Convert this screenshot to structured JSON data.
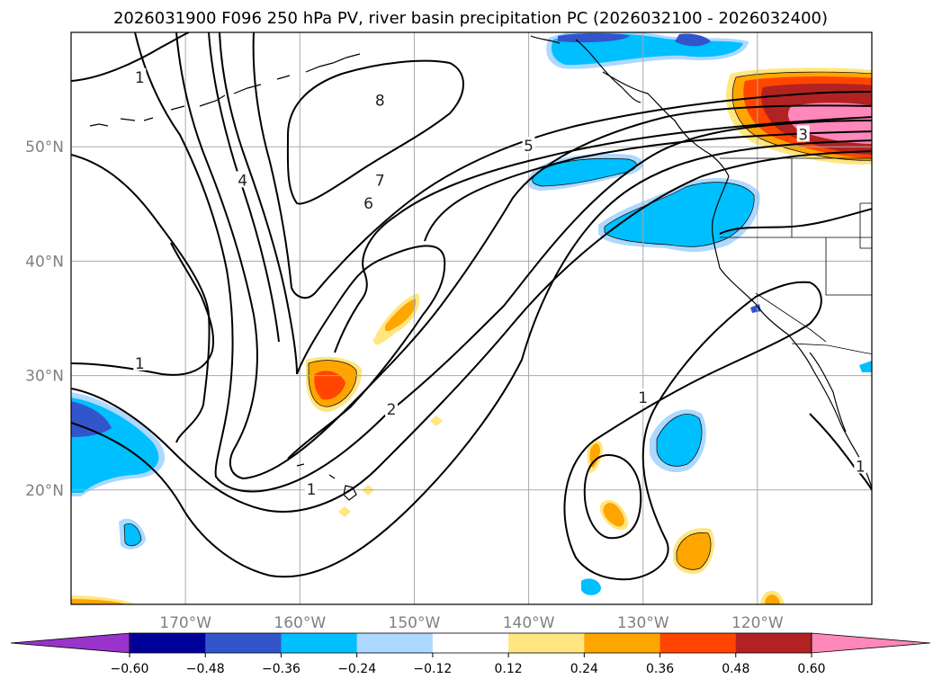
{
  "chart_data": {
    "type": "map",
    "title": "2026031900 F096 250 hPa PV, river basin precipitation PC (2026032100 - 2026032400)",
    "x_ticks": [
      "170°W",
      "160°W",
      "150°W",
      "140°W",
      "130°W",
      "120°W"
    ],
    "y_ticks": [
      "50°N",
      "40°N",
      "30°N",
      "20°N"
    ],
    "lon_range": [
      -180,
      -110
    ],
    "lat_range": [
      10,
      60
    ],
    "grid": true,
    "colorbar": {
      "orientation": "horizontal",
      "extend": "both",
      "levels": [
        -0.6,
        -0.48,
        -0.36,
        -0.24,
        -0.12,
        0.12,
        0.24,
        0.36,
        0.48,
        0.6
      ],
      "tick_labels": [
        "−0.60",
        "−0.48",
        "−0.36",
        "−0.24",
        "−0.12",
        "0.12",
        "0.24",
        "0.36",
        "0.48",
        "0.60"
      ],
      "colors": [
        "#9933cc",
        "#000099",
        "#3355cc",
        "#00bfff",
        "#add8ff",
        "#ffffff",
        "#ffe680",
        "#ffa500",
        "#ff4500",
        "#b22222",
        "#ff88bb"
      ]
    },
    "contour_labels": [
      {
        "text": "1",
        "lon": -174,
        "lat": 56
      },
      {
        "text": "8",
        "lon": -153,
        "lat": 54
      },
      {
        "text": "5",
        "lon": -140,
        "lat": 50
      },
      {
        "text": "3",
        "lon": -116,
        "lat": 51
      },
      {
        "text": "4",
        "lon": -165,
        "lat": 47
      },
      {
        "text": "7",
        "lon": -153,
        "lat": 47
      },
      {
        "text": "6",
        "lon": -154,
        "lat": 45
      },
      {
        "text": "1",
        "lon": -174,
        "lat": 31
      },
      {
        "text": "2",
        "lon": -152,
        "lat": 27
      },
      {
        "text": "1",
        "lon": -130,
        "lat": 28
      },
      {
        "text": "1",
        "lon": -159,
        "lat": 20
      },
      {
        "text": "1",
        "lon": -111,
        "lat": 22
      }
    ]
  }
}
